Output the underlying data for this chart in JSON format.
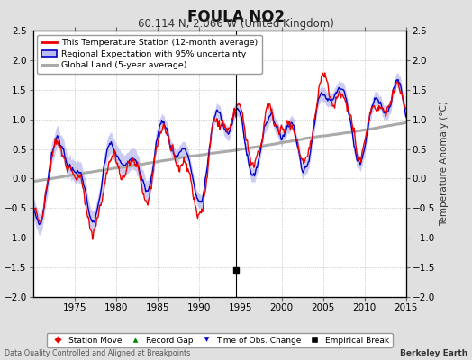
{
  "title": "FOULA NO2",
  "subtitle": "60.114 N, 2.066 W (United Kingdom)",
  "ylabel": "Temperature Anomaly (°C)",
  "footer_left": "Data Quality Controlled and Aligned at Breakpoints",
  "footer_right": "Berkeley Earth",
  "xlim": [
    1970,
    2015
  ],
  "ylim": [
    -2.0,
    2.5
  ],
  "yticks": [
    -2,
    -1.5,
    -1,
    -0.5,
    0,
    0.5,
    1,
    1.5,
    2,
    2.5
  ],
  "xticks": [
    1975,
    1980,
    1985,
    1990,
    1995,
    2000,
    2005,
    2010,
    2015
  ],
  "red_line_color": "#EE0000",
  "blue_line_color": "#0000CC",
  "blue_fill_color": "#BBBBEE",
  "gray_line_color": "#AAAAAA",
  "empirical_break_x": 1994.5,
  "empirical_break_y": -1.55,
  "background_color": "#E0E0E0",
  "plot_bg_color": "#FFFFFF",
  "legend_labels": [
    "This Temperature Station (12-month average)",
    "Regional Expectation with 95% uncertainty",
    "Global Land (5-year average)"
  ],
  "bottom_legend_labels": [
    "Station Move",
    "Record Gap",
    "Time of Obs. Change",
    "Empirical Break"
  ],
  "bottom_legend_colors": [
    "#EE0000",
    "#008800",
    "#0000CC",
    "#000000"
  ],
  "bottom_legend_markers": [
    "D",
    "^",
    "v",
    "s"
  ]
}
